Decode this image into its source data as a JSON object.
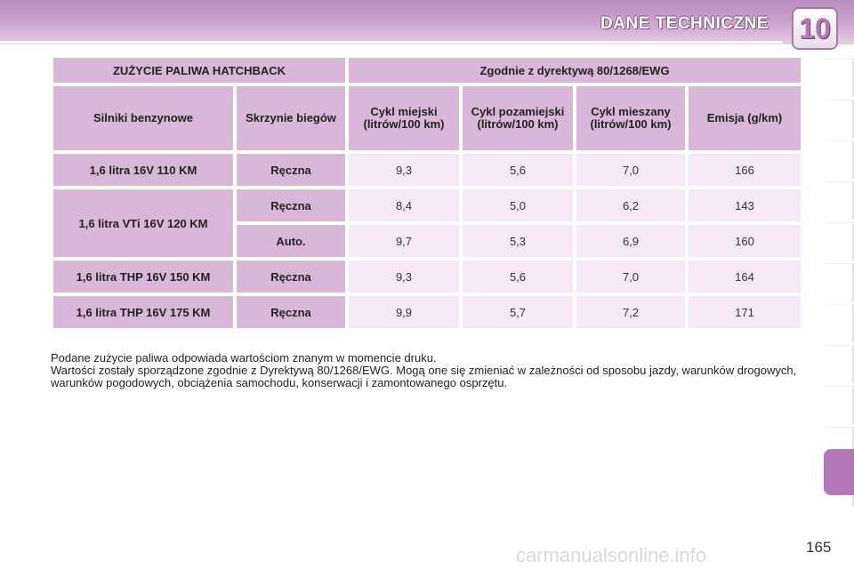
{
  "header": {
    "title": "DANE TECHNICZNE",
    "chapter": "10"
  },
  "table": {
    "title_left": "ZUŻYCIE PALIWA HATCHBACK",
    "title_right": "Zgodnie z dyrektywą 80/1268/EWG",
    "columns": [
      "Silniki benzynowe",
      "Skrzynie biegów",
      "Cykl miejski (litrów/100 km)",
      "Cykl pozamiejski (litrów/100 km)",
      "Cykl mieszany (litrów/100 km)",
      "Emisja (g/km)"
    ],
    "rows": [
      {
        "engine": "1,6 litra 16V 110 KM",
        "gearbox": "Ręczna",
        "urban": "9,3",
        "extra_urban": "5,6",
        "combined": "7,0",
        "emission": "166"
      },
      {
        "engine": "1,6 litra VTi 16V 120 KM",
        "gearbox": "Ręczna",
        "urban": "8,4",
        "extra_urban": "5,0",
        "combined": "6,2",
        "emission": "143"
      },
      {
        "engine": "",
        "gearbox": "Auto.",
        "urban": "9,7",
        "extra_urban": "5,3",
        "combined": "6,9",
        "emission": "160"
      },
      {
        "engine": "1,6 litra THP 16V 150 KM",
        "gearbox": "Ręczna",
        "urban": "9,3",
        "extra_urban": "5,6",
        "combined": "7,0",
        "emission": "164"
      },
      {
        "engine": "1,6 litra THP 16V 175 KM",
        "gearbox": "Ręczna",
        "urban": "9,9",
        "extra_urban": "5,7",
        "combined": "7,2",
        "emission": "171"
      }
    ]
  },
  "notes": {
    "line1": "Podane zużycie paliwa odpowiada wartościom znanym w momencie druku.",
    "line2": "Wartości zostały sporządzone zgodnie z Dyrektywą 80/1268/EWG. Mogą one się zmieniać w zależności od sposobu jazdy, warunków drogowych, warunków pogodowych, obciążenia samochodu, konserwacji i zamontowanego osprzętu."
  },
  "page_number": "165",
  "watermark": "carmanualsonline.info",
  "colors": {
    "accent": "#b279b6",
    "header_cell": "#d8b7d9",
    "value_cell": "#f4e9f4"
  }
}
